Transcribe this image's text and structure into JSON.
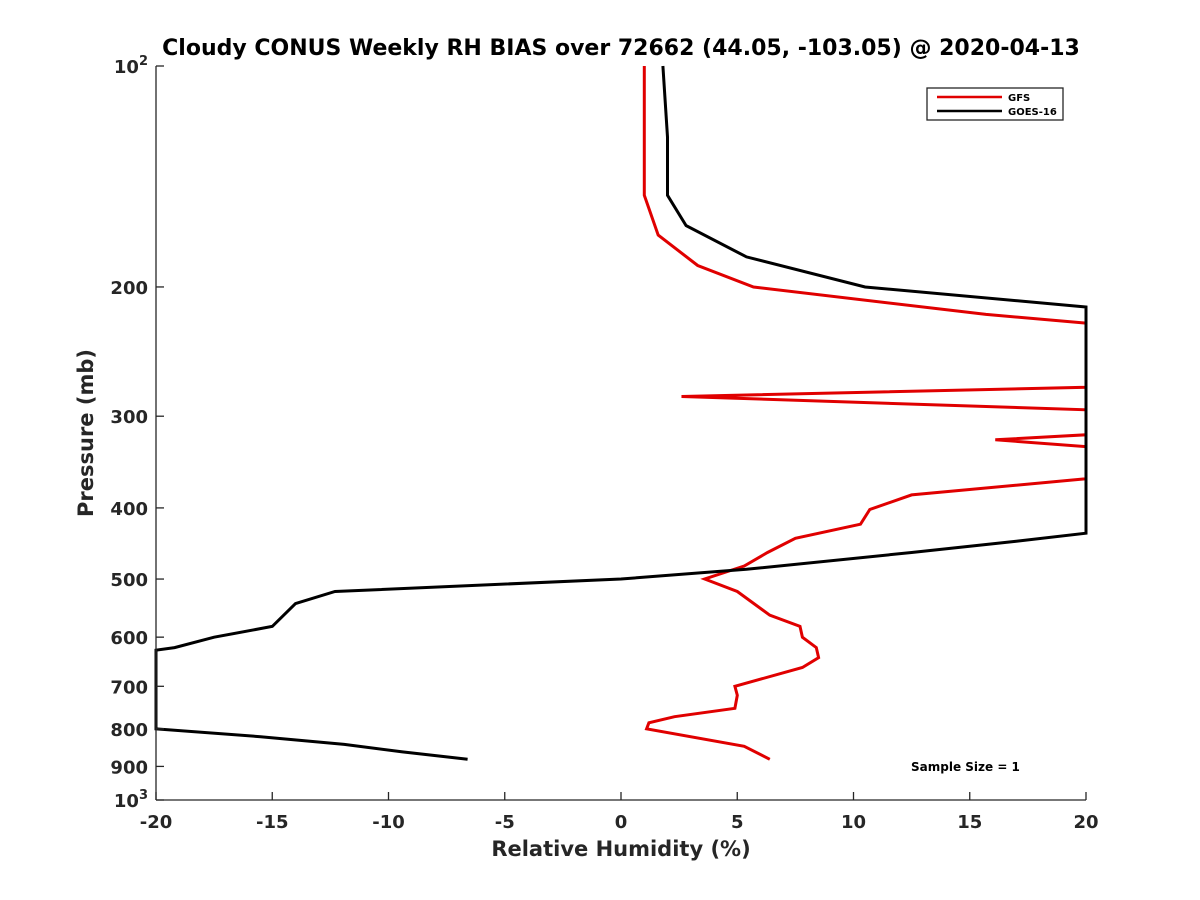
{
  "chart_data": {
    "type": "line",
    "title": "Cloudy CONUS Weekly RH BIAS over 72662 (44.05, -103.05) @ 2020-04-13",
    "xlabel": "Relative Humidity (%)",
    "ylabel": "Pressure (mb)",
    "xlim": [
      -20,
      20
    ],
    "ylim": [
      100,
      1000
    ],
    "y_scale": "log",
    "y_reversed": true,
    "grid": false,
    "legend_position": "top-right",
    "x_ticks": [
      {
        "value": -20,
        "label": "-20"
      },
      {
        "value": -15,
        "label": "-15"
      },
      {
        "value": -10,
        "label": "-10"
      },
      {
        "value": -5,
        "label": "-5"
      },
      {
        "value": 0,
        "label": "0"
      },
      {
        "value": 5,
        "label": "5"
      },
      {
        "value": 10,
        "label": "10"
      },
      {
        "value": 15,
        "label": "15"
      },
      {
        "value": 20,
        "label": "20"
      }
    ],
    "y_ticks": [
      {
        "value": 100,
        "label": "10",
        "sup": "2"
      },
      {
        "value": 200,
        "label": "200",
        "sup": ""
      },
      {
        "value": 300,
        "label": "300",
        "sup": ""
      },
      {
        "value": 400,
        "label": "400",
        "sup": ""
      },
      {
        "value": 500,
        "label": "500",
        "sup": ""
      },
      {
        "value": 600,
        "label": "600",
        "sup": ""
      },
      {
        "value": 700,
        "label": "700",
        "sup": ""
      },
      {
        "value": 800,
        "label": "800",
        "sup": ""
      },
      {
        "value": 900,
        "label": "900",
        "sup": ""
      },
      {
        "value": 1000,
        "label": "10",
        "sup": "3"
      }
    ],
    "annotation": "Sample Size = 1",
    "series": [
      {
        "name": "GFS",
        "color": "#e00000",
        "points": [
          [
            1.0,
            100
          ],
          [
            1.0,
            100
          ],
          [
            1.0,
            125
          ],
          [
            1.0,
            150
          ],
          [
            1.6,
            170
          ],
          [
            3.3,
            187
          ],
          [
            5.7,
            200
          ],
          [
            15.7,
            218
          ],
          [
            20.0,
            224
          ],
          [
            20.0,
            274
          ],
          [
            2.6,
            282
          ],
          [
            20.0,
            294
          ],
          [
            20.0,
            318
          ],
          [
            16.1,
            323
          ],
          [
            20.0,
            330
          ],
          [
            20.0,
            365
          ],
          [
            12.5,
            384
          ],
          [
            10.7,
            402
          ],
          [
            10.3,
            421
          ],
          [
            7.5,
            440
          ],
          [
            6.3,
            460
          ],
          [
            5.3,
            480
          ],
          [
            3.6,
            500
          ],
          [
            5.0,
            520
          ],
          [
            6.4,
            560
          ],
          [
            7.7,
            580
          ],
          [
            7.8,
            600
          ],
          [
            8.4,
            620
          ],
          [
            8.5,
            640
          ],
          [
            7.8,
            660
          ],
          [
            4.9,
            700
          ],
          [
            5.0,
            720
          ],
          [
            4.9,
            750
          ],
          [
            2.3,
            770
          ],
          [
            1.2,
            785
          ],
          [
            1.1,
            800
          ],
          [
            5.3,
            845
          ],
          [
            6.4,
            880
          ]
        ]
      },
      {
        "name": "GOES-16",
        "color": "#000000",
        "points": [
          [
            1.8,
            100
          ],
          [
            2.0,
            125
          ],
          [
            2.0,
            150
          ],
          [
            2.8,
            165
          ],
          [
            5.4,
            182
          ],
          [
            10.5,
            200
          ],
          [
            20.0,
            213
          ],
          [
            20.0,
            433
          ],
          [
            17.0,
            444
          ],
          [
            12.5,
            460
          ],
          [
            5.4,
            485
          ],
          [
            0.0,
            500
          ],
          [
            -12.3,
            520
          ],
          [
            -14.0,
            540
          ],
          [
            -15.0,
            580
          ],
          [
            -17.5,
            600
          ],
          [
            -19.2,
            620
          ],
          [
            -20.0,
            625
          ],
          [
            -20.0,
            800
          ],
          [
            -15.5,
            820
          ],
          [
            -11.9,
            840
          ],
          [
            -9.4,
            860
          ],
          [
            -6.6,
            880
          ]
        ]
      }
    ]
  }
}
